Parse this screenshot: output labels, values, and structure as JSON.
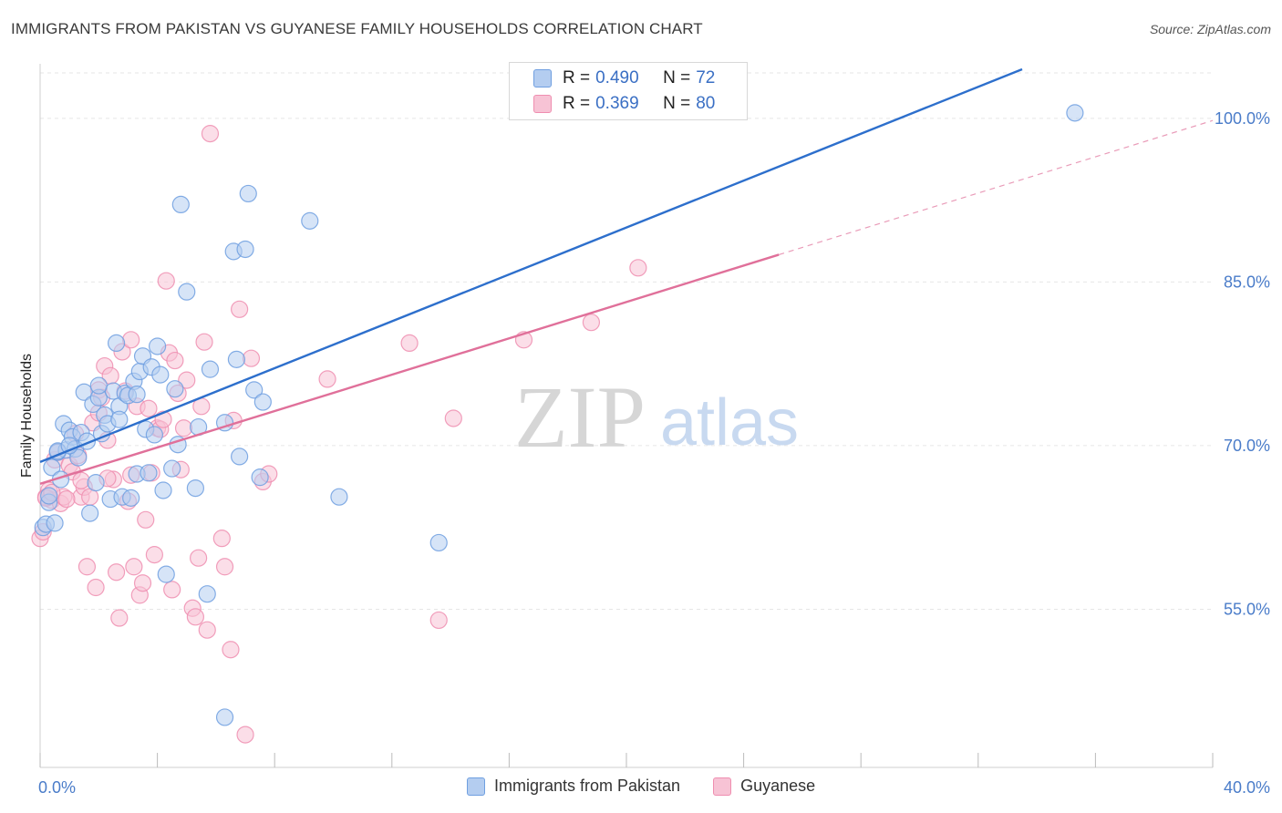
{
  "title": "IMMIGRANTS FROM PAKISTAN VS GUYANESE FAMILY HOUSEHOLDS CORRELATION CHART",
  "source": "Source: ZipAtlas.com",
  "watermark": {
    "zip": "ZIP",
    "atlas": "atlas"
  },
  "colors": {
    "blue": "#6f9fe0",
    "blue_fill": "#b4cdf0",
    "blue_line": "#2d6fcc",
    "pink": "#ef8eb0",
    "pink_fill": "#f7c3d5",
    "pink_line": "#e0709a",
    "tick_text": "#4a7cc9",
    "grid": "#e6e6e6"
  },
  "legend": {
    "r_label": "R =",
    "n_label": "N =",
    "series": [
      {
        "r": "0.490",
        "n": "72"
      },
      {
        "r": "0.369",
        "n": "80"
      }
    ]
  },
  "chart_data": {
    "type": "scatter",
    "title": "IMMIGRANTS FROM PAKISTAN VS GUYANESE FAMILY HOUSEHOLDS CORRELATION CHART",
    "xlabel": "",
    "ylabel": "Family Households",
    "xlim": [
      0,
      40
    ],
    "ylim": [
      40.5,
      105
    ],
    "x_tick_labels": [
      "0.0%",
      "40.0%"
    ],
    "y_ticks": [
      55,
      70,
      85,
      100
    ],
    "y_tick_labels": [
      "55.0%",
      "70.0%",
      "85.0%",
      "100.0%"
    ],
    "grid": true,
    "series": [
      {
        "name": "Immigrants from Pakistan",
        "r": 0.49,
        "n": 72,
        "trend": {
          "x": [
            0,
            33.5
          ],
          "y": [
            68.5,
            104.5
          ]
        },
        "points": [
          [
            0.1,
            62.5
          ],
          [
            0.2,
            62.8
          ],
          [
            0.3,
            64.8
          ],
          [
            0.4,
            68.0
          ],
          [
            0.6,
            69.4
          ],
          [
            0.7,
            66.9
          ],
          [
            0.8,
            72.0
          ],
          [
            0.9,
            69.6
          ],
          [
            1.0,
            71.4
          ],
          [
            1.1,
            70.8
          ],
          [
            1.2,
            69.7
          ],
          [
            1.3,
            68.9
          ],
          [
            1.4,
            71.2
          ],
          [
            1.5,
            74.9
          ],
          [
            1.6,
            70.4
          ],
          [
            1.7,
            63.8
          ],
          [
            1.8,
            73.8
          ],
          [
            1.9,
            66.6
          ],
          [
            2.0,
            74.4
          ],
          [
            2.1,
            71.1
          ],
          [
            2.2,
            72.8
          ],
          [
            2.3,
            72.0
          ],
          [
            2.4,
            65.1
          ],
          [
            2.5,
            75.0
          ],
          [
            2.6,
            79.4
          ],
          [
            2.7,
            73.6
          ],
          [
            2.8,
            65.3
          ],
          [
            2.9,
            74.8
          ],
          [
            3.0,
            74.6
          ],
          [
            3.1,
            65.2
          ],
          [
            3.2,
            75.9
          ],
          [
            3.3,
            67.4
          ],
          [
            3.4,
            76.8
          ],
          [
            3.5,
            78.2
          ],
          [
            3.6,
            71.5
          ],
          [
            3.7,
            67.5
          ],
          [
            3.8,
            77.2
          ],
          [
            3.9,
            71.0
          ],
          [
            4.0,
            79.1
          ],
          [
            4.1,
            76.5
          ],
          [
            4.2,
            65.9
          ],
          [
            4.3,
            58.2
          ],
          [
            4.5,
            67.9
          ],
          [
            4.7,
            70.1
          ],
          [
            4.8,
            92.1
          ],
          [
            5.0,
            84.1
          ],
          [
            5.3,
            66.1
          ],
          [
            5.4,
            71.7
          ],
          [
            5.7,
            56.4
          ],
          [
            5.8,
            77.0
          ],
          [
            6.3,
            45.1
          ],
          [
            6.6,
            87.8
          ],
          [
            6.7,
            77.9
          ],
          [
            6.8,
            69.0
          ],
          [
            7.0,
            88.0
          ],
          [
            7.1,
            93.1
          ],
          [
            7.3,
            75.1
          ],
          [
            7.5,
            67.1
          ],
          [
            7.6,
            74.0
          ],
          [
            9.2,
            90.6
          ],
          [
            10.2,
            65.3
          ],
          [
            13.6,
            61.1
          ],
          [
            35.3,
            100.5
          ],
          [
            0.5,
            62.9
          ],
          [
            0.3,
            65.4
          ],
          [
            0.6,
            69.5
          ],
          [
            1.0,
            70.0
          ],
          [
            2.0,
            75.5
          ],
          [
            2.7,
            72.4
          ],
          [
            3.3,
            74.7
          ],
          [
            4.6,
            75.2
          ],
          [
            6.3,
            72.1
          ]
        ]
      },
      {
        "name": "Guyanese",
        "r": 0.369,
        "n": 80,
        "trend": {
          "x": [
            0,
            25.2
          ],
          "y": [
            66.5,
            87.5
          ]
        },
        "trend_dashed": {
          "x": [
            25.2,
            40
          ],
          "y": [
            87.5,
            99.8
          ]
        },
        "points": [
          [
            0.0,
            61.5
          ],
          [
            0.1,
            62.1
          ],
          [
            0.2,
            65.3
          ],
          [
            0.3,
            65.9
          ],
          [
            0.4,
            65.0
          ],
          [
            0.5,
            68.7
          ],
          [
            0.6,
            69.4
          ],
          [
            0.7,
            64.7
          ],
          [
            0.8,
            65.3
          ],
          [
            1.0,
            68.2
          ],
          [
            1.1,
            67.6
          ],
          [
            1.2,
            71.1
          ],
          [
            1.3,
            69.1
          ],
          [
            1.4,
            65.3
          ],
          [
            1.5,
            66.2
          ],
          [
            1.6,
            58.9
          ],
          [
            1.7,
            65.3
          ],
          [
            1.8,
            72.1
          ],
          [
            1.9,
            57.0
          ],
          [
            2.0,
            75.1
          ],
          [
            2.1,
            74.4
          ],
          [
            2.2,
            77.3
          ],
          [
            2.3,
            70.5
          ],
          [
            2.4,
            76.4
          ],
          [
            2.5,
            66.9
          ],
          [
            2.6,
            58.4
          ],
          [
            2.7,
            54.2
          ],
          [
            2.8,
            78.6
          ],
          [
            2.9,
            75.0
          ],
          [
            3.0,
            64.9
          ],
          [
            3.1,
            79.7
          ],
          [
            3.2,
            58.9
          ],
          [
            3.3,
            73.6
          ],
          [
            3.4,
            56.3
          ],
          [
            3.5,
            57.4
          ],
          [
            3.6,
            63.2
          ],
          [
            3.7,
            73.4
          ],
          [
            3.8,
            67.5
          ],
          [
            3.9,
            60.0
          ],
          [
            4.0,
            71.6
          ],
          [
            4.1,
            71.5
          ],
          [
            4.2,
            72.4
          ],
          [
            4.3,
            85.1
          ],
          [
            4.4,
            78.5
          ],
          [
            4.5,
            56.8
          ],
          [
            4.6,
            77.8
          ],
          [
            4.7,
            74.8
          ],
          [
            4.8,
            67.8
          ],
          [
            5.0,
            76.0
          ],
          [
            5.2,
            55.1
          ],
          [
            5.3,
            54.3
          ],
          [
            5.4,
            59.7
          ],
          [
            5.5,
            73.6
          ],
          [
            5.6,
            79.5
          ],
          [
            5.7,
            53.1
          ],
          [
            5.8,
            98.6
          ],
          [
            6.2,
            61.5
          ],
          [
            6.3,
            58.9
          ],
          [
            6.5,
            51.3
          ],
          [
            6.6,
            72.3
          ],
          [
            6.8,
            82.5
          ],
          [
            7.0,
            43.5
          ],
          [
            7.2,
            78.0
          ],
          [
            7.6,
            66.7
          ],
          [
            7.8,
            67.4
          ],
          [
            9.8,
            76.1
          ],
          [
            12.6,
            79.4
          ],
          [
            13.6,
            54.0
          ],
          [
            14.1,
            72.5
          ],
          [
            16.5,
            79.7
          ],
          [
            18.8,
            81.3
          ],
          [
            20.4,
            86.3
          ],
          [
            0.2,
            65.2
          ],
          [
            0.4,
            65.7
          ],
          [
            0.9,
            65.1
          ],
          [
            1.4,
            66.8
          ],
          [
            2.0,
            73.0
          ],
          [
            2.3,
            67.0
          ],
          [
            3.1,
            67.3
          ],
          [
            4.9,
            71.6
          ]
        ]
      }
    ]
  },
  "bottom_legend": [
    "Immigrants from Pakistan",
    "Guyanese"
  ]
}
